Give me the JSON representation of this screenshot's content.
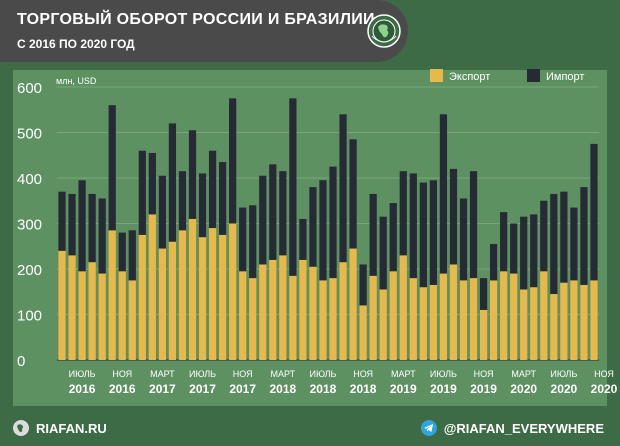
{
  "header": {
    "title": "ТОРГОВЫЙ ОБОРОТ РОССИИ И БРАЗИЛИИ",
    "subtitle": "С 2016 ПО 2020 ГОД"
  },
  "footer": {
    "left_label": "RIAFAN.RU",
    "right_label": "@RIAFAN_EVERYWHERE"
  },
  "colors": {
    "background": "#3c6b45",
    "panel": "#5d9162",
    "export": "#e8b84b",
    "import": "#252a34"
  },
  "chart_data": {
    "type": "bar",
    "stacked": true,
    "unit_label": "млн, USD",
    "ylim": [
      0,
      600
    ],
    "yticks": [
      0,
      100,
      200,
      300,
      400,
      500,
      600
    ],
    "grid": true,
    "legend_position": "top-right",
    "x_ticks": [
      {
        "index": 2,
        "top": "ИЮЛЬ",
        "bottom": "2016"
      },
      {
        "index": 6,
        "top": "НОЯ",
        "bottom": "2016"
      },
      {
        "index": 10,
        "top": "МАРТ",
        "bottom": "2017"
      },
      {
        "index": 14,
        "top": "ИЮЛЬ",
        "bottom": "2017"
      },
      {
        "index": 18,
        "top": "НОЯ",
        "bottom": "2017"
      },
      {
        "index": 22,
        "top": "МАРТ",
        "bottom": "2018"
      },
      {
        "index": 26,
        "top": "ИЮЛЬ",
        "bottom": "2018"
      },
      {
        "index": 30,
        "top": "НОЯ",
        "bottom": "2018"
      },
      {
        "index": 34,
        "top": "МАРТ",
        "bottom": "2019"
      },
      {
        "index": 38,
        "top": "ИЮЛЬ",
        "bottom": "2019"
      },
      {
        "index": 42,
        "top": "НОЯ",
        "bottom": "2019"
      },
      {
        "index": 46,
        "top": "МАРТ",
        "bottom": "2020"
      },
      {
        "index": 50,
        "top": "ИЮЛЬ",
        "bottom": "2020"
      },
      {
        "index": 54,
        "top": "НОЯ",
        "bottom": "2020"
      }
    ],
    "series": [
      {
        "name": "Экспорт",
        "values": [
          240,
          230,
          195,
          215,
          190,
          285,
          195,
          175,
          275,
          320,
          245,
          260,
          285,
          310,
          270,
          290,
          275,
          300,
          195,
          180,
          210,
          220,
          230,
          185,
          220,
          205,
          175,
          180,
          215,
          245,
          120,
          185,
          155,
          195,
          230,
          180,
          160,
          165,
          190,
          210,
          175,
          180,
          110,
          175,
          195,
          190,
          155,
          160,
          195,
          145,
          170,
          175,
          165,
          175
        ]
      },
      {
        "name": "Импорт",
        "values": [
          130,
          135,
          200,
          150,
          165,
          275,
          85,
          110,
          185,
          135,
          160,
          260,
          130,
          195,
          140,
          170,
          160,
          275,
          140,
          160,
          195,
          210,
          185,
          390,
          90,
          175,
          220,
          245,
          325,
          240,
          90,
          180,
          160,
          150,
          185,
          230,
          230,
          230,
          350,
          210,
          180,
          235,
          70,
          80,
          130,
          110,
          160,
          160,
          155,
          220,
          200,
          160,
          215,
          300
        ]
      }
    ]
  }
}
